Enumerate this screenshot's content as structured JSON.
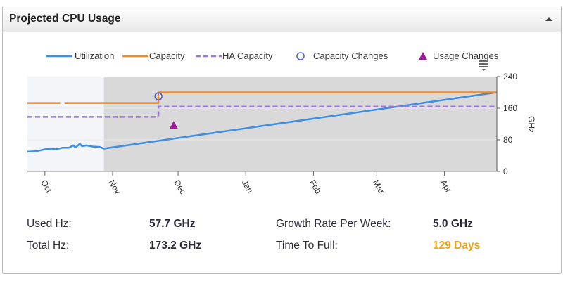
{
  "panel": {
    "title": "Projected CPU Usage"
  },
  "icons": {
    "collapse": "triangle-up-icon",
    "chart_menu": "chart-menu-icon"
  },
  "colors": {
    "utilization": "#3d8ee6",
    "capacity": "#ee8a2e",
    "ha_capacity": "#9b79d6",
    "capacity_changes": "#4b5bd0",
    "usage_changes": "#a0189a",
    "history_background": "#f3f5f9",
    "projection_background": "#d9d9d9",
    "time_to_full": "#eea21a"
  },
  "chart_data": {
    "type": "line",
    "title": "",
    "ylabel": "GHz",
    "ylim": [
      0,
      240
    ],
    "y_ticks": [
      0,
      80,
      160,
      240
    ],
    "x_ticks": [
      "Oct",
      "Nov",
      "Dec",
      "Jan",
      "Feb",
      "Mar",
      "Apr"
    ],
    "xlim": [
      "2019-09-23",
      "2020-04-25"
    ],
    "projection_start": "2019-10-28",
    "legend": [
      "Utilization",
      "Capacity",
      "HA Capacity",
      "Capacity Changes",
      "Usage Changes"
    ],
    "legend_position": "top",
    "series": [
      {
        "name": "Utilization",
        "style": "solid",
        "points": [
          [
            "2019-09-23",
            50
          ],
          [
            "2019-09-27",
            51
          ],
          [
            "2019-10-01",
            56
          ],
          [
            "2019-10-04",
            58
          ],
          [
            "2019-10-06",
            56
          ],
          [
            "2019-10-09",
            60
          ],
          [
            "2019-10-12",
            60
          ],
          [
            "2019-10-14",
            66
          ],
          [
            "2019-10-15",
            61
          ],
          [
            "2019-10-17",
            70
          ],
          [
            "2019-10-18",
            64
          ],
          [
            "2019-10-20",
            66
          ],
          [
            "2019-10-23",
            63
          ],
          [
            "2019-10-26",
            62
          ],
          [
            "2019-10-28",
            57.7
          ],
          [
            "2020-04-25",
            200
          ]
        ]
      },
      {
        "name": "Capacity",
        "style": "solid",
        "points": [
          [
            "2019-09-23",
            173.2
          ],
          [
            "2019-10-08",
            173.2
          ],
          null,
          [
            "2019-10-10",
            173.2
          ],
          [
            "2019-11-22",
            173.2
          ],
          [
            "2019-11-22",
            200
          ],
          [
            "2020-04-25",
            200
          ]
        ]
      },
      {
        "name": "HA Capacity",
        "style": "dashed",
        "points": [
          [
            "2019-09-23",
            138
          ],
          [
            "2019-11-22",
            138
          ],
          [
            "2019-11-22",
            164
          ],
          [
            "2020-04-25",
            164
          ]
        ]
      }
    ],
    "markers": [
      {
        "name": "Capacity Changes",
        "shape": "circle",
        "x": "2019-11-22",
        "y": 190
      },
      {
        "name": "Usage Changes",
        "shape": "triangle",
        "x": "2019-11-29",
        "y": 117
      }
    ],
    "grid": false
  },
  "stats": {
    "used_hz_label": "Used Hz:",
    "used_hz_value": "57.7 GHz",
    "total_hz_label": "Total Hz:",
    "total_hz_value": "173.2 GHz",
    "growth_label": "Growth Rate Per Week:",
    "growth_value": "5.0 GHz",
    "time_to_full_label": "Time To Full:",
    "time_to_full_value": "129 Days"
  }
}
